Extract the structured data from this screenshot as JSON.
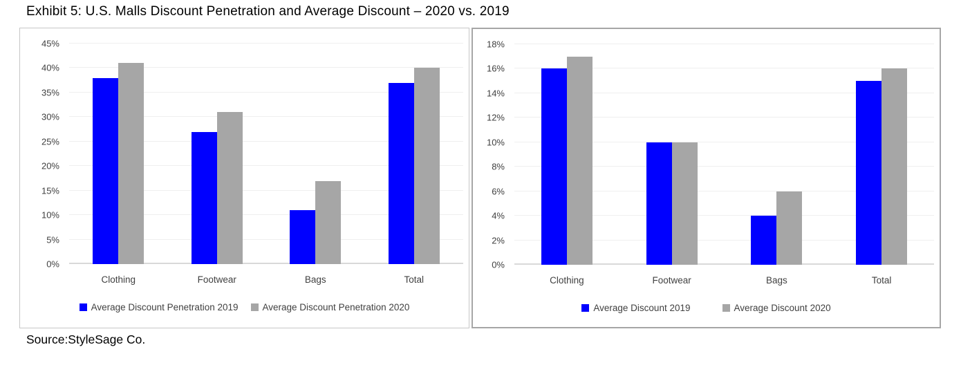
{
  "page": {
    "title": "Exhibit 5: U.S. Malls Discount Penetration and Average Discount – 2020 vs. 2019",
    "source": "Source:StyleSage Co."
  },
  "colors": {
    "series_2019": "#0000ff",
    "series_2020": "#a6a6a6",
    "axis_text": "#404040",
    "gridline": "#efefef",
    "panel_border_left": "#c6c6c6",
    "panel_border_right": "#a6a6a6"
  },
  "chart_data": [
    {
      "type": "bar",
      "title": "",
      "panel": "left",
      "categories": [
        "Clothing",
        "Footwear",
        "Bags",
        "Total"
      ],
      "series": [
        {
          "name": "Average Discount Penetration 2019",
          "color": "#0000ff",
          "values": [
            38,
            27,
            11,
            37
          ]
        },
        {
          "name": "Average Discount Penetration 2020",
          "color": "#a6a6a6",
          "values": [
            41,
            31,
            17,
            40
          ]
        }
      ],
      "ylim": [
        0,
        45
      ],
      "ytick_step": 5,
      "ytick_labels": [
        "0%",
        "5%",
        "10%",
        "15%",
        "20%",
        "25%",
        "30%",
        "35%",
        "40%",
        "45%"
      ],
      "unit": "%",
      "grid": true,
      "legend_position": "bottom"
    },
    {
      "type": "bar",
      "title": "",
      "panel": "right",
      "categories": [
        "Clothing",
        "Footwear",
        "Bags",
        "Total"
      ],
      "series": [
        {
          "name": "Average Discount 2019",
          "color": "#0000ff",
          "values": [
            16,
            10,
            4,
            15
          ]
        },
        {
          "name": "Average Discount 2020",
          "color": "#a6a6a6",
          "values": [
            17,
            10,
            6,
            16
          ]
        }
      ],
      "ylim": [
        0,
        18
      ],
      "ytick_step": 2,
      "ytick_labels": [
        "0%",
        "2%",
        "4%",
        "6%",
        "8%",
        "10%",
        "12%",
        "14%",
        "16%",
        "18%"
      ],
      "unit": "%",
      "grid": true,
      "legend_position": "bottom"
    }
  ]
}
